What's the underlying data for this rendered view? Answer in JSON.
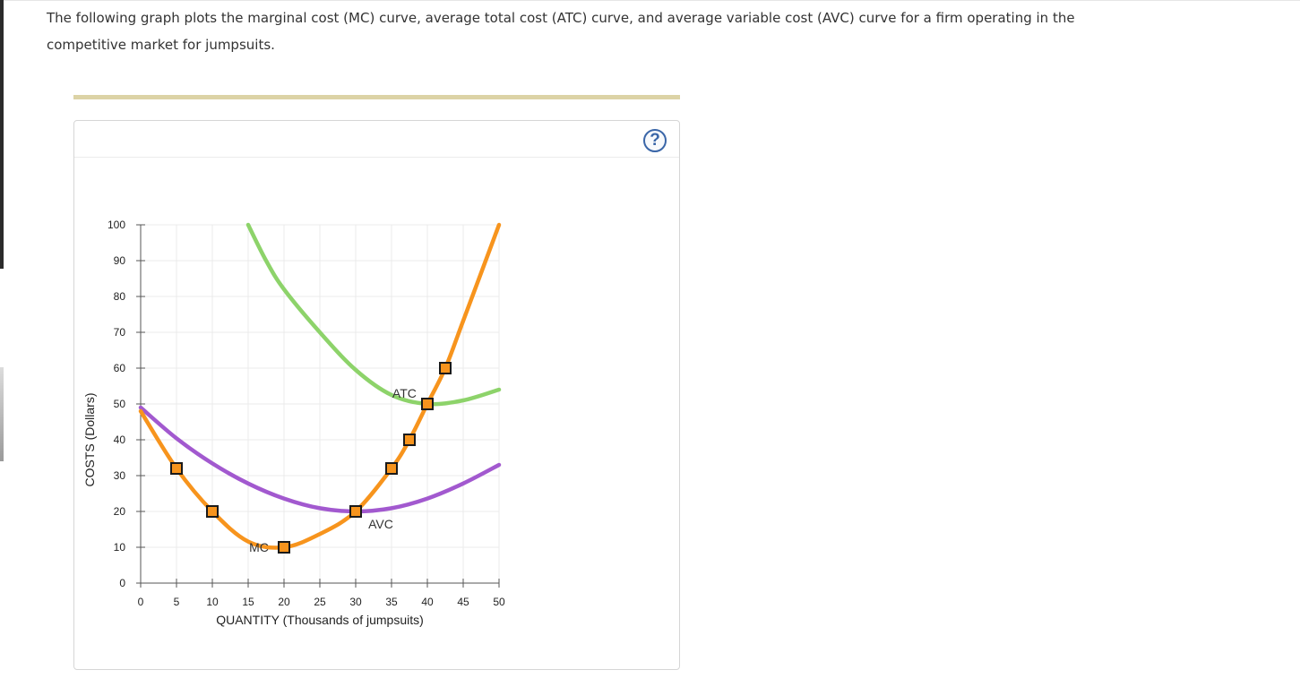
{
  "intro": {
    "text": "The following graph plots the marginal cost (MC) curve, average total cost (ATC) curve, and average variable cost (AVC) curve for a firm operating in the competitive market for jumpsuits."
  },
  "help": {
    "label": "?"
  },
  "colors": {
    "mc": "#f7941d",
    "atc": "#8dd36a",
    "avc": "#a259cf",
    "marker_fill": "#f7941d",
    "marker_stroke": "#1a1a1a",
    "grid": "#ebebeb"
  },
  "chart_data": {
    "type": "line",
    "xlabel": "QUANTITY (Thousands of jumpsuits)",
    "ylabel": "COSTS (Dollars)",
    "xlim": [
      0,
      50
    ],
    "ylim": [
      0,
      100
    ],
    "xticks": [
      0,
      5,
      10,
      15,
      20,
      25,
      30,
      35,
      40,
      45,
      50
    ],
    "yticks": [
      0,
      10,
      20,
      30,
      40,
      50,
      60,
      70,
      80,
      90,
      100
    ],
    "grid": true,
    "series": [
      {
        "name": "MC",
        "color_key": "mc",
        "label_at": [
          16.5,
          10
        ],
        "points": [
          [
            0,
            48
          ],
          [
            5,
            32
          ],
          [
            10,
            20
          ],
          [
            15,
            11.6
          ],
          [
            20,
            10
          ],
          [
            25,
            13.7
          ],
          [
            30,
            20
          ],
          [
            35,
            32
          ],
          [
            37.5,
            40
          ],
          [
            40,
            50
          ],
          [
            42.5,
            60
          ],
          [
            45,
            73.2
          ],
          [
            50,
            100
          ]
        ],
        "markers": [
          [
            5,
            32
          ],
          [
            10,
            20
          ],
          [
            20,
            10
          ],
          [
            30,
            20
          ],
          [
            35,
            32
          ],
          [
            37.5,
            40
          ],
          [
            40,
            50
          ],
          [
            42.5,
            60
          ]
        ]
      },
      {
        "name": "ATC",
        "color_key": "atc",
        "label_at": [
          36.8,
          53
        ],
        "points": [
          [
            15,
            100
          ],
          [
            17.5,
            90
          ],
          [
            20,
            82
          ],
          [
            25,
            70
          ],
          [
            30,
            59.5
          ],
          [
            35,
            52.5
          ],
          [
            40,
            50
          ],
          [
            45,
            51
          ],
          [
            50,
            54
          ]
        ],
        "markers": []
      },
      {
        "name": "AVC",
        "color_key": "avc",
        "label_at": [
          33.5,
          16.5
        ],
        "points": [
          [
            0,
            49
          ],
          [
            5,
            40.4
          ],
          [
            10,
            33.4
          ],
          [
            15,
            27.8
          ],
          [
            20,
            23.6
          ],
          [
            25,
            20.9
          ],
          [
            30,
            20
          ],
          [
            35,
            20.9
          ],
          [
            40,
            23.6
          ],
          [
            45,
            27.8
          ],
          [
            50,
            33
          ]
        ],
        "markers": []
      }
    ]
  }
}
